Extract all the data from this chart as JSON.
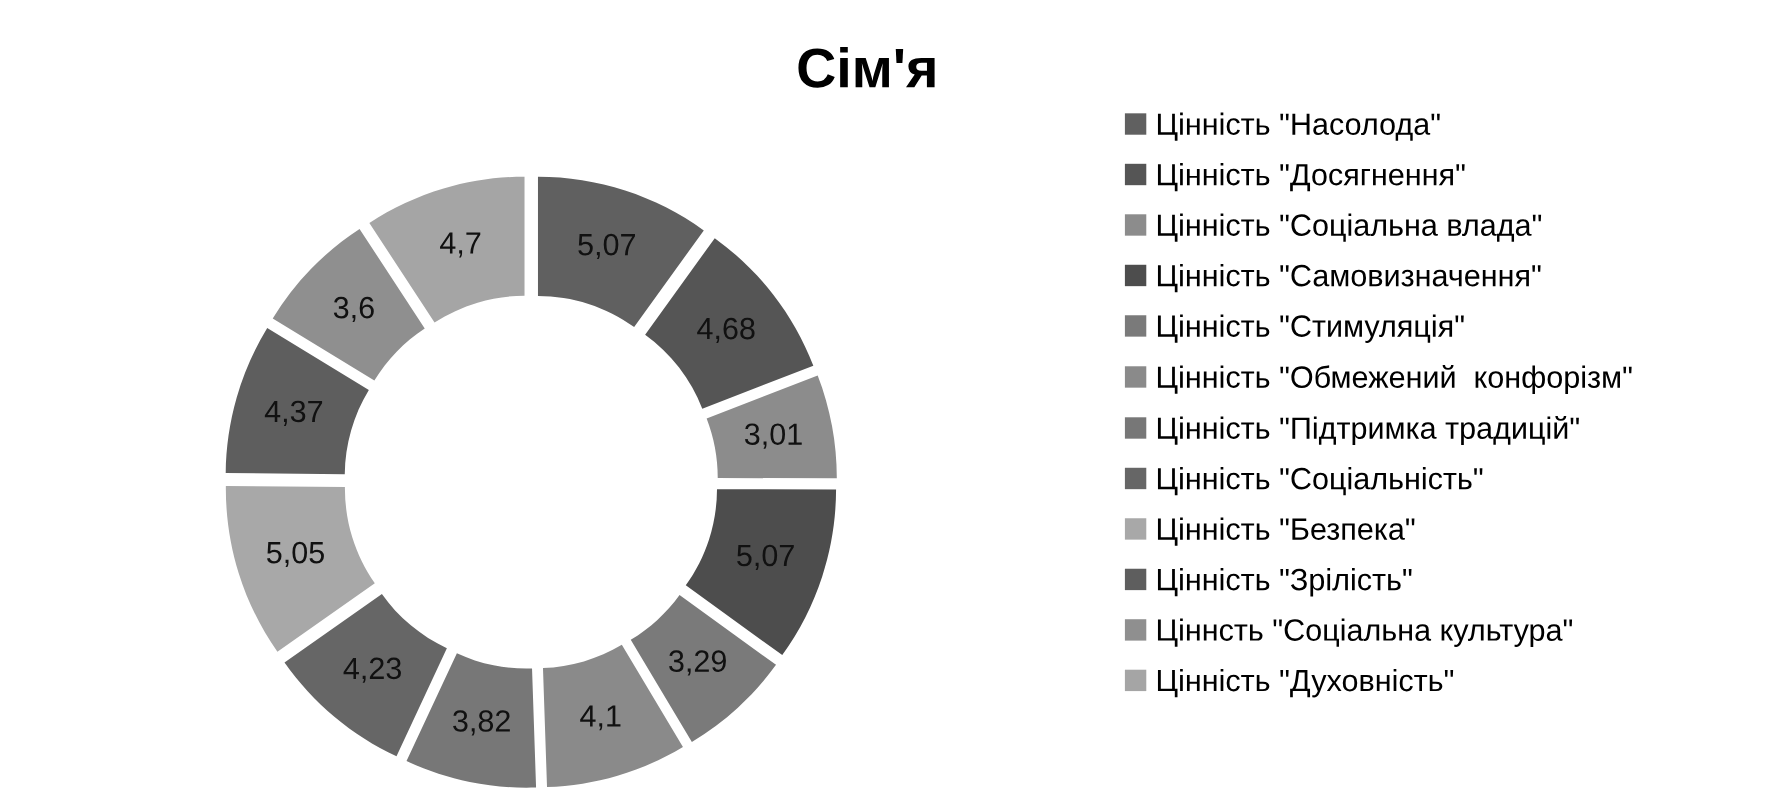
{
  "chart_data": {
    "type": "donut",
    "title": "Сім'я",
    "categories": [
      "Цінність \"Насолода\"",
      "Цінність \"Досягнення\"",
      "Цінність \"Соціальна влада\"",
      "Цінність \"Самовизначення\"",
      "Цінність \"Стимуляція\"",
      "Цінність \"Обмежений  конфорізм\"",
      "Цінність \"Підтримка традицій\"",
      "Цінність \"Соціальність\"",
      "Цінність \"Безпека\"",
      "Цінність \"Зрілість\"",
      "Ціннсть \"Соціальна культура\"",
      "Цінність \"Духовність\""
    ],
    "values": [
      5.07,
      4.68,
      3.01,
      5.07,
      3.29,
      4.1,
      3.82,
      4.23,
      5.05,
      4.37,
      3.6,
      4.7
    ],
    "value_labels": [
      "5,07",
      "4,68",
      "3,01",
      "5,07",
      "3,29",
      "4,1",
      "3,82",
      "4,23",
      "5,05",
      "4,37",
      "3,6",
      "4,7"
    ],
    "colors": [
      "#606060",
      "#555555",
      "#8c8c8c",
      "#4d4d4d",
      "#7a7a7a",
      "#8a8a8a",
      "#777777",
      "#666666",
      "#a8a8a8",
      "#5e5e5e",
      "#8f8f8f",
      "#a5a5a5"
    ],
    "legend": "right"
  }
}
